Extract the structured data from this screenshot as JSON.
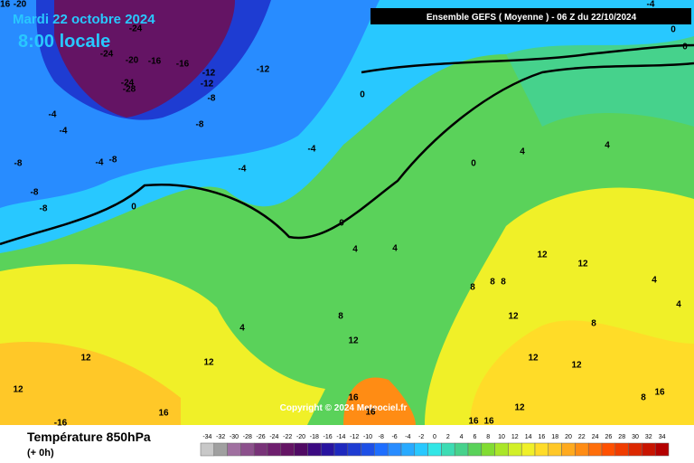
{
  "header": {
    "date": "Mardi 22 octobre 2024",
    "time": "8:00 locale",
    "model": "Ensemble GEFS  ( Moyenne )  -  06 Z du 22/10/2024",
    "copyright": "Copyright © 2024 Meteociel.fr"
  },
  "footer": {
    "title": "Température 850hPa",
    "lead": "(+ 0h)"
  },
  "legend": {
    "ticks": [
      -34,
      -32,
      -30,
      -28,
      -26,
      -24,
      -22,
      -20,
      -18,
      -16,
      -14,
      -12,
      -10,
      -8,
      -6,
      -4,
      -2,
      0,
      2,
      4,
      6,
      8,
      10,
      12,
      14,
      16,
      18,
      20,
      22,
      24,
      26,
      28,
      30,
      32,
      34
    ],
    "colors": [
      "#c8c8c8",
      "#a0a0a0",
      "#a070a0",
      "#8c508c",
      "#783278",
      "#6e1e6e",
      "#641464",
      "#500a64",
      "#3c0a82",
      "#2814a0",
      "#1e28be",
      "#1e3cd2",
      "#1e50e6",
      "#1e6eff",
      "#288cff",
      "#28aaff",
      "#28c8ff",
      "#32e6e6",
      "#3cdcb4",
      "#46d28c",
      "#5ad25a",
      "#82dc32",
      "#aae628",
      "#d2f028",
      "#f0f028",
      "#ffdc28",
      "#ffc828",
      "#ffaa1e",
      "#ff8c14",
      "#ff6e0a",
      "#ff5000",
      "#f03c00",
      "#dc2800",
      "#c81400",
      "#b40000"
    ]
  },
  "contour_labels": [
    "-16",
    "-20",
    "-24",
    "-24",
    "-20",
    "-16",
    "-16",
    "-12",
    "-12",
    "-12",
    "-24",
    "-28",
    "-8",
    "-4",
    "-4",
    "-8",
    "-4",
    "-8",
    "-4",
    "-8",
    "-4",
    "-8",
    "-8",
    "0",
    "0",
    "0",
    "4",
    "4",
    "0",
    "4",
    "4",
    "12",
    "12",
    "8",
    "8",
    "8",
    "4",
    "4",
    "12",
    "8",
    "4",
    "12",
    "12",
    "12",
    "8",
    "12",
    "12",
    "12",
    "8",
    "16",
    "16",
    "16",
    "12",
    "16",
    "-4",
    "0",
    "0",
    "-16",
    "16",
    "16"
  ]
}
